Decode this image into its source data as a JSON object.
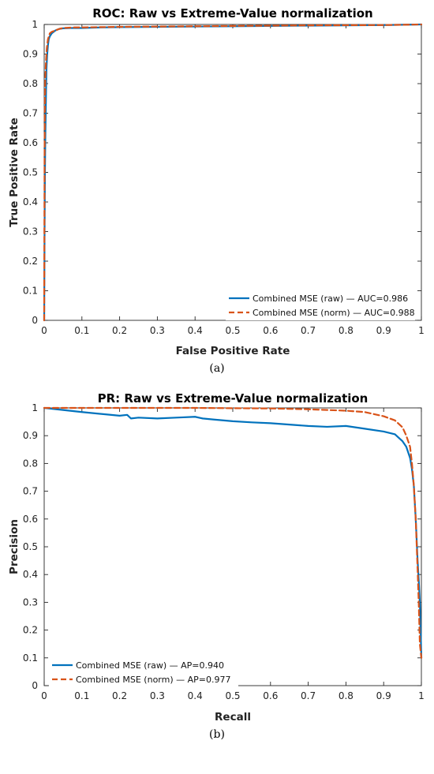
{
  "chart_data": [
    {
      "type": "line",
      "title": "ROC: Raw vs Extreme-Value normalization",
      "xlabel": "False Positive Rate",
      "ylabel": "True Positive Rate",
      "xlim": [
        0,
        1
      ],
      "ylim": [
        0,
        1
      ],
      "xticks": [
        "0",
        "0.1",
        "0.2",
        "0.3",
        "0.4",
        "0.5",
        "0.6",
        "0.7",
        "0.8",
        "0.9",
        "1"
      ],
      "yticks": [
        "0",
        "0.1",
        "0.2",
        "0.3",
        "0.4",
        "0.5",
        "0.6",
        "0.7",
        "0.8",
        "0.9",
        "1"
      ],
      "grid": false,
      "legend": "bottom-right",
      "caption": "(a)",
      "series": [
        {
          "name": "Combined MSE (raw) — AUC=0.986",
          "color": "#0072BD",
          "style": "solid",
          "x": [
            0,
            0.001,
            0.002,
            0.003,
            0.004,
            0.005,
            0.006,
            0.008,
            0.01,
            0.012,
            0.015,
            0.02,
            0.025,
            0.03,
            0.04,
            0.05,
            0.07,
            0.1,
            0.15,
            0.2,
            0.3,
            0.5,
            0.7,
            0.9,
            1
          ],
          "y": [
            0,
            0.3,
            0.5,
            0.62,
            0.7,
            0.78,
            0.85,
            0.9,
            0.93,
            0.95,
            0.96,
            0.97,
            0.975,
            0.98,
            0.985,
            0.987,
            0.988,
            0.988,
            0.99,
            0.991,
            0.992,
            0.994,
            0.996,
            0.998,
            1
          ]
        },
        {
          "name": "Combined MSE (norm) — AUC=0.988",
          "color": "#D95319",
          "style": "dashed",
          "x": [
            0,
            0.001,
            0.002,
            0.003,
            0.005,
            0.007,
            0.01,
            0.015,
            0.02,
            0.03,
            0.04,
            0.05,
            0.08,
            0.1,
            0.15,
            0.2,
            0.3,
            0.5,
            0.7,
            0.9,
            1
          ],
          "y": [
            0,
            0.55,
            0.75,
            0.82,
            0.88,
            0.92,
            0.95,
            0.97,
            0.975,
            0.98,
            0.985,
            0.988,
            0.99,
            0.99,
            0.991,
            0.992,
            0.993,
            0.995,
            0.997,
            0.998,
            1
          ]
        }
      ]
    },
    {
      "type": "line",
      "title": "PR: Raw vs Extreme-Value normalization",
      "xlabel": "Recall",
      "ylabel": "Precision",
      "xlim": [
        0,
        1
      ],
      "ylim": [
        0,
        1
      ],
      "xticks": [
        "0",
        "0.1",
        "0.2",
        "0.3",
        "0.4",
        "0.5",
        "0.6",
        "0.7",
        "0.8",
        "0.9",
        "1"
      ],
      "yticks": [
        "0",
        "0.1",
        "0.2",
        "0.3",
        "0.4",
        "0.5",
        "0.6",
        "0.7",
        "0.8",
        "0.9",
        "1"
      ],
      "grid": false,
      "legend": "bottom-left",
      "caption": "(b)",
      "series": [
        {
          "name": "Combined MSE (raw) — AP=0.940",
          "color": "#0072BD",
          "style": "solid",
          "x": [
            0,
            0.1,
            0.2,
            0.22,
            0.23,
            0.25,
            0.3,
            0.35,
            0.4,
            0.42,
            0.45,
            0.5,
            0.55,
            0.6,
            0.65,
            0.7,
            0.75,
            0.8,
            0.85,
            0.9,
            0.93,
            0.95,
            0.96,
            0.97,
            0.975,
            0.98,
            0.985,
            0.99,
            0.993,
            0.996,
            0.998,
            1
          ],
          "y": [
            1,
            0.985,
            0.972,
            0.975,
            0.962,
            0.965,
            0.962,
            0.965,
            0.968,
            0.962,
            0.958,
            0.952,
            0.948,
            0.945,
            0.94,
            0.935,
            0.932,
            0.935,
            0.925,
            0.915,
            0.905,
            0.88,
            0.86,
            0.82,
            0.78,
            0.72,
            0.6,
            0.45,
            0.38,
            0.3,
            0.2,
            0.1
          ]
        },
        {
          "name": "Combined MSE (norm) — AP=0.977",
          "color": "#D95319",
          "style": "dashed",
          "x": [
            0,
            0.2,
            0.4,
            0.6,
            0.7,
            0.8,
            0.85,
            0.9,
            0.93,
            0.95,
            0.96,
            0.97,
            0.975,
            0.98,
            0.985,
            0.99,
            0.993,
            0.996,
            1
          ],
          "y": [
            1,
            1,
            1,
            0.998,
            0.995,
            0.99,
            0.985,
            0.97,
            0.955,
            0.93,
            0.9,
            0.86,
            0.8,
            0.72,
            0.6,
            0.42,
            0.3,
            0.15,
            0.1
          ]
        }
      ]
    }
  ]
}
